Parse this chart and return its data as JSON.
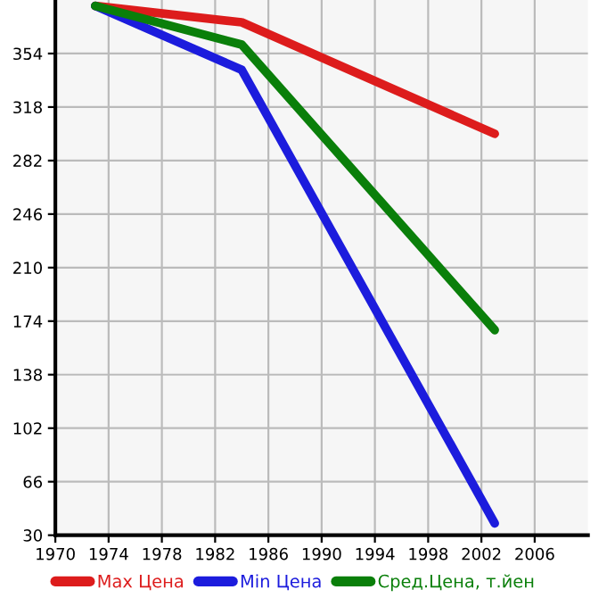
{
  "chart_data": {
    "type": "line",
    "x": [
      1973,
      1984,
      2003
    ],
    "series": [
      {
        "name": "Max Цена",
        "color": "#dd1c1c",
        "values": [
          386,
          375,
          300
        ]
      },
      {
        "name": "Min Цена",
        "color": "#1c1cdd",
        "values": [
          386,
          343,
          38
        ]
      },
      {
        "name": "Сред.Цена, т.йен",
        "color": "#0a7f0a",
        "values": [
          386,
          360,
          168
        ]
      }
    ],
    "xlim": [
      1970,
      2010
    ],
    "xticks": [
      1970,
      1974,
      1978,
      1982,
      1986,
      1990,
      1994,
      1998,
      2002,
      2006
    ],
    "ylim": [
      30,
      390
    ],
    "yticks": [
      30,
      66,
      102,
      138,
      174,
      210,
      246,
      282,
      318,
      354
    ],
    "grid": true,
    "legend": "bottom",
    "marker": "none",
    "line_style": "solid"
  }
}
